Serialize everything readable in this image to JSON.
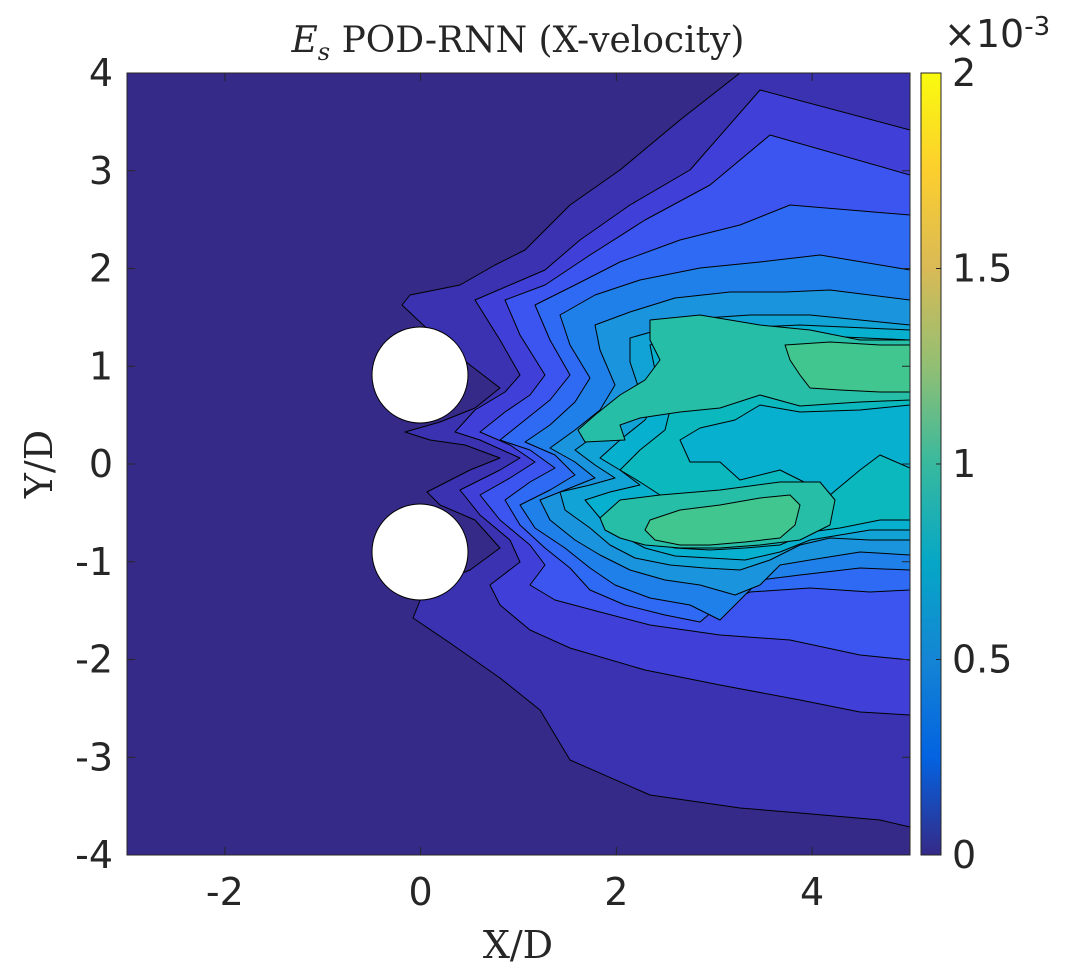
{
  "chart_data": {
    "type": "heatmap",
    "title_symbol": "E",
    "title_subscript": "s",
    "title_rest": " POD-RNN (X-velocity)",
    "xlabel": "X/D",
    "ylabel": "Y/D",
    "xlim": [
      -3,
      5
    ],
    "ylim": [
      -4,
      4
    ],
    "x_ticks": [
      "-2",
      "0",
      "2",
      "4"
    ],
    "x_tick_values": [
      -2,
      0,
      2,
      4
    ],
    "y_ticks": [
      "-4",
      "-3",
      "-2",
      "-1",
      "0",
      "1",
      "2",
      "3",
      "4"
    ],
    "y_tick_values": [
      -4,
      -3,
      -2,
      -1,
      0,
      1,
      2,
      3,
      4
    ],
    "colorbar": {
      "min": 0,
      "max": 0.002,
      "ticks": [
        "0",
        "0.5",
        "1",
        "1.5",
        "2"
      ],
      "tick_values": [
        0,
        0.5,
        1,
        1.5,
        2
      ],
      "exponent_base": "×10",
      "exponent_power": "-3",
      "colormap": "parula"
    },
    "cylinders": [
      {
        "name": "upper-cylinder",
        "center_x": 0,
        "center_y": 0.9,
        "diameter": 1
      },
      {
        "name": "lower-cylinder",
        "center_x": 0,
        "center_y": -0.9,
        "diameter": 1
      }
    ],
    "contour_levels": [
      {
        "level": 0.0,
        "color": "#352a87"
      },
      {
        "level": 0.0001,
        "color": "#3a32b0"
      },
      {
        "level": 0.0002,
        "color": "#4040d8"
      },
      {
        "level": 0.0003,
        "color": "#3c55f0"
      },
      {
        "level": 0.0004,
        "color": "#2f6af5"
      },
      {
        "level": 0.0005,
        "color": "#2080ea"
      },
      {
        "level": 0.0006,
        "color": "#1a95dd"
      },
      {
        "level": 0.0007,
        "color": "#11a3d5"
      },
      {
        "level": 0.0008,
        "color": "#08b0cf"
      },
      {
        "level": 0.0009,
        "color": "#0ab8bd"
      },
      {
        "level": 0.001,
        "color": "#26bea6"
      },
      {
        "level": 0.0011,
        "color": "#40c68e"
      },
      {
        "level": 0.0012,
        "color": "#4cc87c"
      }
    ],
    "peak_regions": [
      {
        "name": "upper-wake-peak",
        "x_range": [
          3.7,
          5
        ],
        "y_range": [
          0.7,
          1.2
        ],
        "value": 0.0012
      },
      {
        "name": "lower-wake-peak",
        "x_range": [
          2.4,
          4.0
        ],
        "y_range": [
          -0.85,
          -0.35
        ],
        "value": 0.0012
      }
    ]
  }
}
